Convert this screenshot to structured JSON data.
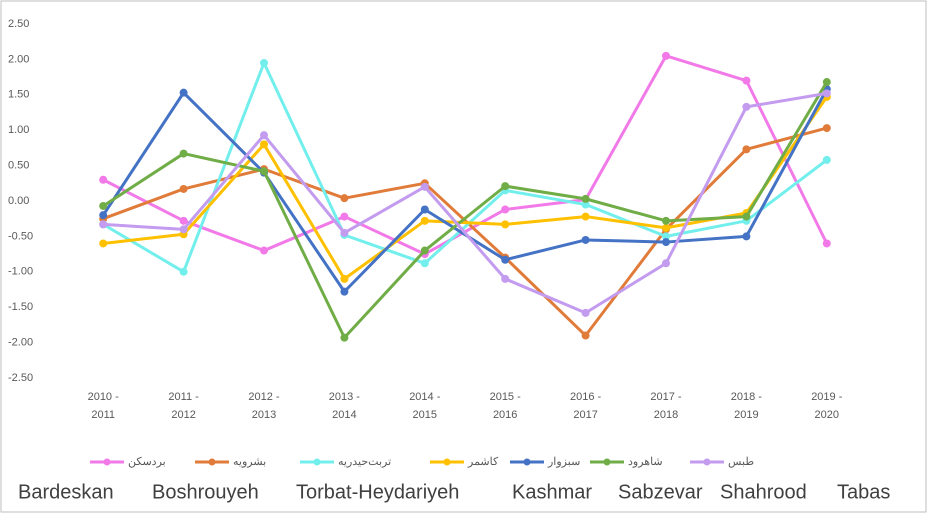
{
  "chart_data": {
    "type": "line",
    "categories": [
      "2010 - 2011",
      "2011 - 2012",
      "2012 - 2013",
      "2013 - 2014",
      "2014 - 2015",
      "2015 - 2016",
      "2016 - 2017",
      "2017 - 2018",
      "2018 - 2019",
      "2019 - 2020"
    ],
    "series": [
      {
        "name": "بردسکن",
        "color": "#f279e8",
        "values": [
          0.3,
          -0.28,
          -0.7,
          -0.22,
          -0.75,
          -0.12,
          0.02,
          2.05,
          1.7,
          -0.6
        ]
      },
      {
        "name": "بشرویه",
        "color": "#e07b39",
        "values": [
          -0.25,
          0.17,
          0.45,
          0.04,
          0.25,
          -0.8,
          -1.9,
          -0.4,
          0.73,
          1.03
        ]
      },
      {
        "name": "تربت‌حیدریه",
        "color": "#72efec",
        "values": [
          -0.33,
          -1.0,
          1.95,
          -0.48,
          -0.88,
          0.15,
          -0.05,
          -0.5,
          -0.28,
          0.58
        ]
      },
      {
        "name": "کاشمر",
        "color": "#ffc000",
        "values": [
          -0.6,
          -0.47,
          0.8,
          -1.1,
          -0.28,
          -0.33,
          -0.22,
          -0.38,
          -0.17,
          1.47
        ]
      },
      {
        "name": "سبزوار",
        "color": "#4472c4",
        "values": [
          -0.2,
          1.53,
          0.4,
          -1.28,
          -0.12,
          -0.83,
          -0.55,
          -0.58,
          -0.5,
          1.58
        ]
      },
      {
        "name": "شاهرود",
        "color": "#70ad47",
        "values": [
          -0.07,
          0.67,
          0.42,
          -1.93,
          -0.7,
          0.21,
          0.03,
          -0.28,
          -0.22,
          1.68
        ]
      },
      {
        "name": "طبس",
        "color": "#c39bef",
        "values": [
          -0.33,
          -0.4,
          0.93,
          -0.45,
          0.2,
          -1.1,
          -1.58,
          -0.88,
          1.33,
          1.52
        ]
      }
    ],
    "legend_translations": [
      "Bardeskan",
      "Boshrouyeh",
      "Torbat-Heydariyeh",
      "Kashmar",
      "Sabzevar",
      "Shahrood",
      "Tabas"
    ],
    "ylim": [
      -2.5,
      2.5
    ],
    "yticks": [
      {
        "value": -2.5,
        "label": "-2.50"
      },
      {
        "value": -2,
        "label": "-2.00"
      },
      {
        "value": -1.5,
        "label": "-1.50"
      },
      {
        "value": -1,
        "label": "-1.00"
      },
      {
        "value": -0.5,
        "label": "-0.50"
      },
      {
        "value": 0,
        "label": "0.00"
      },
      {
        "value": 0.5,
        "label": "0.50"
      },
      {
        "value": 1,
        "label": "1.00"
      },
      {
        "value": 1.5,
        "label": "1.50"
      },
      {
        "value": 2,
        "label": "2.00"
      },
      {
        "value": 2.5,
        "label": "2.50"
      }
    ],
    "grid": false,
    "legend": "bottom"
  }
}
